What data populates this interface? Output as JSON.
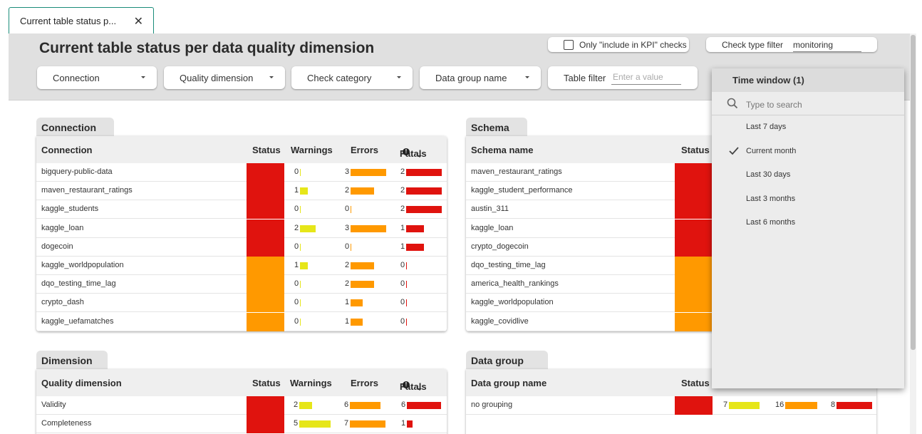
{
  "tab": {
    "title": "Current table status p...",
    "close": "✕"
  },
  "page": {
    "title": "Current table status per data quality dimension"
  },
  "filters": {
    "kpi_checkbox_label": "Only \"include in KPI\" checks",
    "check_type_label": "Check type filter",
    "check_type_value": "monitoring",
    "connection": "Connection",
    "quality_dimension": "Quality dimension",
    "check_category": "Check category",
    "data_group_name": "Data group name",
    "table_filter_label": "Table filter",
    "table_filter_placeholder": "Enter a value"
  },
  "colors": {
    "red": "#e0130e",
    "orange": "#ff9900",
    "yellow": "#e6e619",
    "teal": "#1a8c7a"
  },
  "connection_card": {
    "tab": "Connection",
    "columns": {
      "name": "Connection",
      "status": "Status",
      "warnings": "Warnings",
      "errors": "Errors",
      "fatals": "Fatals"
    },
    "rows": [
      {
        "name": "bigquery-public-data",
        "status": "red",
        "warnings": "0",
        "errors": "3",
        "fatals": "2"
      },
      {
        "name": "maven_restaurant_ratings",
        "status": "red",
        "warnings": "1",
        "errors": "2",
        "fatals": "2"
      },
      {
        "name": "kaggle_students",
        "status": "red",
        "warnings": "0",
        "errors": "0",
        "fatals": "2"
      },
      {
        "name": "kaggle_loan",
        "status": "red",
        "warnings": "2",
        "errors": "3",
        "fatals": "1"
      },
      {
        "name": "dogecoin",
        "status": "red",
        "warnings": "0",
        "errors": "0",
        "fatals": "1"
      },
      {
        "name": "kaggle_worldpopulation",
        "status": "orange",
        "warnings": "1",
        "errors": "2",
        "fatals": "0"
      },
      {
        "name": "dqo_testing_time_lag",
        "status": "orange",
        "warnings": "0",
        "errors": "2",
        "fatals": "0"
      },
      {
        "name": "crypto_dash",
        "status": "orange",
        "warnings": "0",
        "errors": "1",
        "fatals": "0"
      },
      {
        "name": "kaggle_uefamatches",
        "status": "orange",
        "warnings": "0",
        "errors": "1",
        "fatals": "0"
      }
    ]
  },
  "schema_card": {
    "tab": "Schema",
    "columns": {
      "name": "Schema name",
      "status": "Status"
    },
    "rows": [
      {
        "name": "maven_restaurant_ratings",
        "status": "red"
      },
      {
        "name": "kaggle_student_performance",
        "status": "red"
      },
      {
        "name": "austin_311",
        "status": "red"
      },
      {
        "name": "kaggle_loan",
        "status": "red"
      },
      {
        "name": "crypto_dogecoin",
        "status": "red"
      },
      {
        "name": "dqo_testing_time_lag",
        "status": "orange"
      },
      {
        "name": "america_health_rankings",
        "status": "orange"
      },
      {
        "name": "kaggle_worldpopulation",
        "status": "orange"
      },
      {
        "name": "kaggle_covidlive",
        "status": "orange"
      }
    ]
  },
  "dimension_card": {
    "tab": "Dimension",
    "columns": {
      "name": "Quality dimension",
      "status": "Status",
      "warnings": "Warnings",
      "errors": "Errors",
      "fatals": "Fatals"
    },
    "rows": [
      {
        "name": "Validity",
        "status": "red",
        "warnings": "2",
        "errors": "6",
        "fatals": "6"
      },
      {
        "name": "Completeness",
        "status": "red",
        "warnings": "5",
        "errors": "7",
        "fatals": "1"
      }
    ]
  },
  "datagroup_card": {
    "tab": "Data group",
    "columns": {
      "name": "Data group name",
      "status": "Status"
    },
    "rows": [
      {
        "name": "no grouping",
        "status": "red",
        "warnings": "7",
        "errors": "16",
        "fatals": "8"
      }
    ]
  },
  "time_window": {
    "title": "Time window (1)",
    "search_placeholder": "Type to search",
    "options": [
      {
        "label": "Last 7 days",
        "checked": false
      },
      {
        "label": "Current month",
        "checked": true
      },
      {
        "label": "Last 30 days",
        "checked": false
      },
      {
        "label": "Last 3 months",
        "checked": false
      },
      {
        "label": "Last 6 months",
        "checked": false
      }
    ]
  }
}
